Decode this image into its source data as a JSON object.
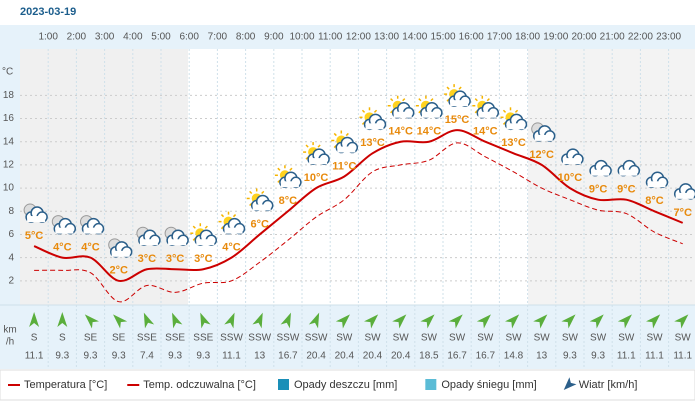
{
  "chart_data": {
    "type": "line",
    "title": "2023-03-19",
    "hour_labels": [
      "1:00",
      "2:00",
      "3:00",
      "4:00",
      "5:00",
      "6:00",
      "7:00",
      "8:00",
      "9:00",
      "10:00",
      "11:00",
      "12:00",
      "13:00",
      "14:00",
      "15:00",
      "16:00",
      "17:00",
      "18:00",
      "19:00",
      "20:00",
      "21:00",
      "22:00",
      "23:00"
    ],
    "y_unit": "°C",
    "ylim": [
      0,
      22
    ],
    "yticks": [
      2,
      4,
      6,
      8,
      10,
      12,
      14,
      16,
      18
    ],
    "grid": true,
    "series": [
      {
        "name": "Temperatura [°C]",
        "color": "#cc0000",
        "dashed": false,
        "values": [
          5,
          4,
          4,
          2,
          3,
          3,
          3,
          4,
          6,
          8,
          10,
          11,
          13,
          14,
          14,
          15,
          14,
          13,
          12,
          10,
          9,
          9,
          8,
          7
        ],
        "value_labels": [
          "5°C",
          "4°C",
          "4°C",
          "2°C",
          "3°C",
          "3°C",
          "3°C",
          "4°C",
          "6°C",
          "8°C",
          "10°C",
          "11°C",
          "13°C",
          "14°C",
          "14°C",
          "15°C",
          "14°C",
          "13°C",
          "12°C",
          "10°C",
          "9°C",
          "9°C",
          "8°C",
          "7°C"
        ]
      },
      {
        "name": "Temp. odczuwalna [°C]",
        "color": "#cc0000",
        "dashed": true,
        "values": [
          2.9,
          2.9,
          2.7,
          0.2,
          1.6,
          1,
          1.8,
          2,
          3.6,
          5.5,
          7.5,
          9,
          11.4,
          12,
          12.4,
          13.9,
          12.7,
          11.4,
          10,
          9,
          8.1,
          7.8,
          6.2,
          5.2
        ]
      }
    ],
    "legend_extra": [
      {
        "name": "Opady deszczu [mm]",
        "color": "#1a8fb8"
      },
      {
        "name": "Opady śniegu [mm]",
        "color": "#5bbcd6"
      }
    ],
    "wind": {
      "name": "Wiatr [km/h]",
      "unit": [
        "km",
        "/h"
      ],
      "directions": [
        "S",
        "S",
        "SE",
        "SE",
        "SSE",
        "SSE",
        "SSE",
        "SSW",
        "SSW",
        "SSW",
        "SSW",
        "SW",
        "SW",
        "SW",
        "SW",
        "SW",
        "SW",
        "SW",
        "SW",
        "SW",
        "SW",
        "SW",
        "SW",
        "SW"
      ],
      "speeds": [
        11.1,
        9.3,
        9.3,
        9.3,
        7.4,
        9.3,
        9.3,
        11.1,
        13,
        16.7,
        20.4,
        20.4,
        20.4,
        20.4,
        18.5,
        16.7,
        16.7,
        14.8,
        13,
        9.3,
        9.3,
        11.1,
        11.1,
        11.1
      ]
    }
  }
}
